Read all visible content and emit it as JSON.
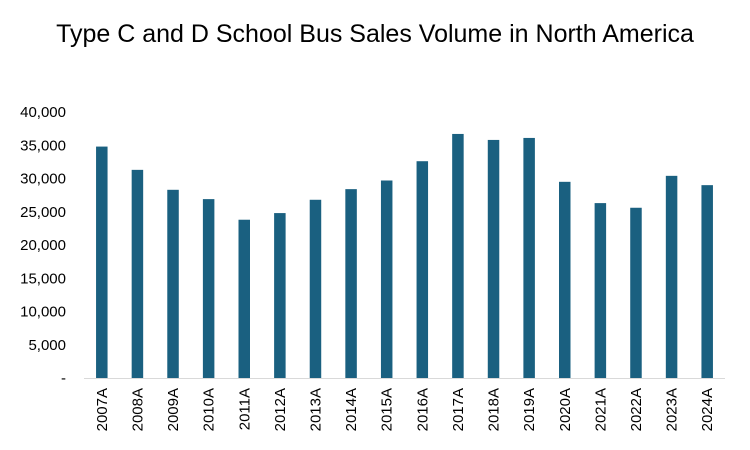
{
  "chart_data": {
    "type": "bar",
    "title": "Type C and D School Bus Sales Volume in North America",
    "xlabel": "",
    "ylabel": "",
    "categories": [
      "2007A",
      "2008A",
      "2009A",
      "2010A",
      "2011A",
      "2012A",
      "2013A",
      "2014A",
      "2015A",
      "2016A",
      "2017A",
      "2018A",
      "2019A",
      "2020A",
      "2021A",
      "2022A",
      "2023A",
      "2024A"
    ],
    "values": [
      34800,
      31300,
      28300,
      26900,
      23800,
      24800,
      26800,
      28400,
      29700,
      32600,
      36700,
      35800,
      36100,
      29500,
      26300,
      25600,
      30400,
      29000
    ],
    "ylim": [
      0,
      40000
    ],
    "yticks": [
      0,
      5000,
      10000,
      15000,
      20000,
      25000,
      30000,
      35000,
      40000
    ],
    "ytick_labels": [
      "-",
      "5,000",
      "10,000",
      "15,000",
      "20,000",
      "25,000",
      "30,000",
      "35,000",
      "40,000"
    ],
    "grid": false,
    "legend": "none",
    "bar_color": "#1a6080"
  }
}
